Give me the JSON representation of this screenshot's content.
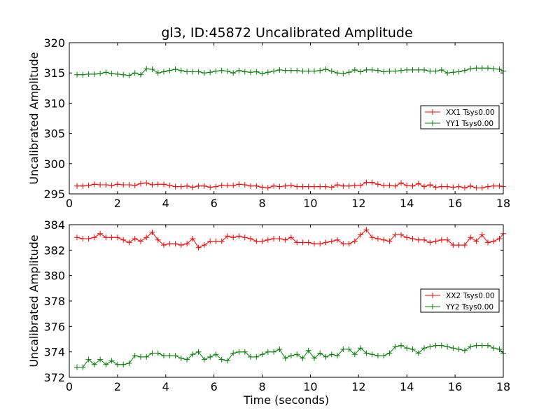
{
  "title": "gl3, ID:45872 Uncalibrated Amplitude",
  "chart_data": [
    {
      "type": "line",
      "title": "gl3, ID:45872 Uncalibrated Amplitude",
      "xlabel": "",
      "ylabel": "Uncalibrated Amplitude",
      "xlim": [
        0,
        18
      ],
      "ylim": [
        295,
        320
      ],
      "xticks": [
        "0",
        "2",
        "4",
        "6",
        "8",
        "10",
        "12",
        "14",
        "16",
        "18"
      ],
      "yticks": [
        "295",
        "300",
        "305",
        "310",
        "315",
        "320"
      ],
      "grid": false,
      "legend_position": "center-right",
      "marker": "plus",
      "series": [
        {
          "name": "XX1 Tsys0.00",
          "color": "#ff0000",
          "x": [
            0.32,
            0.56,
            0.8,
            1.04,
            1.28,
            1.52,
            1.76,
            2.0,
            2.24,
            2.48,
            2.72,
            2.96,
            3.2,
            3.44,
            3.68,
            3.92,
            4.16,
            4.4,
            4.64,
            4.88,
            5.12,
            5.36,
            5.6,
            5.84,
            6.08,
            6.32,
            6.56,
            6.8,
            7.04,
            7.28,
            7.52,
            7.76,
            8.0,
            8.24,
            8.48,
            8.72,
            8.96,
            9.2,
            9.44,
            9.68,
            9.92,
            10.16,
            10.4,
            10.64,
            10.88,
            11.12,
            11.36,
            11.6,
            11.84,
            12.08,
            12.32,
            12.56,
            12.8,
            13.04,
            13.28,
            13.52,
            13.76,
            14.0,
            14.24,
            14.48,
            14.72,
            14.96,
            15.2,
            15.44,
            15.68,
            15.92,
            16.16,
            16.4,
            16.64,
            16.88,
            17.12,
            17.36,
            17.6,
            17.84,
            18.0
          ],
          "y": [
            296.3,
            296.3,
            296.4,
            296.6,
            296.5,
            296.5,
            296.4,
            296.6,
            296.5,
            296.5,
            296.4,
            296.7,
            296.8,
            296.5,
            296.6,
            296.6,
            296.4,
            296.2,
            296.2,
            296.3,
            296.1,
            296.3,
            296.3,
            296.1,
            296.2,
            296.4,
            296.4,
            296.4,
            296.6,
            296.5,
            296.3,
            296.3,
            296.1,
            296.0,
            296.3,
            296.2,
            296.3,
            296.4,
            296.2,
            296.2,
            296.2,
            296.2,
            296.2,
            296.2,
            296.1,
            296.5,
            296.3,
            296.3,
            296.4,
            296.4,
            296.9,
            296.9,
            296.6,
            296.4,
            296.4,
            296.3,
            296.8,
            296.4,
            296.3,
            296.7,
            296.2,
            296.5,
            296.1,
            296.2,
            296.2,
            296.1,
            296.2,
            296.0,
            296.3,
            296.0,
            296.0,
            296.2,
            296.3,
            296.3,
            296.2
          ]
        },
        {
          "name": "YY1 Tsys0.00",
          "color": "#008000",
          "x": [
            0.32,
            0.56,
            0.8,
            1.04,
            1.28,
            1.52,
            1.76,
            2.0,
            2.24,
            2.48,
            2.72,
            2.96,
            3.2,
            3.44,
            3.68,
            3.92,
            4.16,
            4.4,
            4.64,
            4.88,
            5.12,
            5.36,
            5.6,
            5.84,
            6.08,
            6.32,
            6.56,
            6.8,
            7.04,
            7.28,
            7.52,
            7.76,
            8.0,
            8.24,
            8.48,
            8.72,
            8.96,
            9.2,
            9.44,
            9.68,
            9.92,
            10.16,
            10.4,
            10.64,
            10.88,
            11.12,
            11.36,
            11.6,
            11.84,
            12.08,
            12.32,
            12.56,
            12.8,
            13.04,
            13.28,
            13.52,
            13.76,
            14.0,
            14.24,
            14.48,
            14.72,
            14.96,
            15.2,
            15.44,
            15.68,
            15.92,
            16.16,
            16.4,
            16.64,
            16.88,
            17.12,
            17.36,
            17.6,
            17.84,
            18.0
          ],
          "y": [
            314.7,
            314.7,
            314.8,
            314.8,
            314.9,
            315.1,
            314.9,
            314.8,
            314.7,
            314.6,
            315.0,
            314.7,
            315.7,
            315.6,
            315.0,
            315.2,
            315.4,
            315.6,
            315.4,
            315.2,
            315.2,
            315.2,
            315.0,
            315.1,
            315.3,
            315.4,
            315.3,
            315.0,
            315.4,
            315.2,
            315.1,
            315.2,
            314.9,
            315.1,
            315.3,
            315.5,
            315.4,
            315.4,
            315.4,
            315.3,
            315.3,
            315.3,
            315.4,
            315.6,
            315.3,
            315.0,
            314.9,
            315.1,
            315.5,
            315.2,
            315.5,
            315.5,
            315.4,
            315.2,
            315.3,
            315.3,
            315.4,
            315.5,
            315.5,
            315.5,
            315.5,
            315.3,
            315.3,
            315.5,
            315.0,
            315.1,
            315.2,
            315.4,
            315.7,
            315.8,
            315.8,
            315.8,
            315.7,
            315.6,
            315.3
          ]
        }
      ]
    },
    {
      "type": "line",
      "title": "",
      "xlabel": "Time (seconds)",
      "ylabel": "Uncalibrated Amplitude",
      "xlim": [
        0,
        18
      ],
      "ylim": [
        372,
        384
      ],
      "xticks": [
        "0",
        "2",
        "4",
        "6",
        "8",
        "10",
        "12",
        "14",
        "16",
        "18"
      ],
      "yticks": [
        "372",
        "374",
        "376",
        "378",
        "380",
        "382",
        "384"
      ],
      "grid": false,
      "legend_position": "center-right",
      "marker": "plus",
      "series": [
        {
          "name": "XX2 Tsys0.00",
          "color": "#ff0000",
          "x": [
            0.32,
            0.56,
            0.8,
            1.04,
            1.28,
            1.52,
            1.76,
            2.0,
            2.24,
            2.48,
            2.72,
            2.96,
            3.2,
            3.44,
            3.68,
            3.92,
            4.16,
            4.4,
            4.64,
            4.88,
            5.12,
            5.36,
            5.6,
            5.84,
            6.08,
            6.32,
            6.56,
            6.8,
            7.04,
            7.28,
            7.52,
            7.76,
            8.0,
            8.24,
            8.48,
            8.72,
            8.96,
            9.2,
            9.44,
            9.68,
            9.92,
            10.16,
            10.4,
            10.64,
            10.88,
            11.12,
            11.36,
            11.6,
            11.84,
            12.08,
            12.32,
            12.56,
            12.8,
            13.04,
            13.28,
            13.52,
            13.76,
            14.0,
            14.24,
            14.48,
            14.72,
            14.96,
            15.2,
            15.44,
            15.68,
            15.92,
            16.16,
            16.4,
            16.64,
            16.88,
            17.12,
            17.36,
            17.6,
            17.84,
            18.0
          ],
          "y": [
            383.0,
            382.9,
            382.9,
            383.0,
            383.3,
            383.0,
            383.0,
            383.0,
            382.8,
            382.6,
            382.9,
            382.7,
            383.0,
            383.4,
            382.8,
            382.4,
            382.5,
            382.5,
            382.4,
            382.5,
            382.9,
            382.2,
            382.4,
            382.7,
            382.7,
            382.7,
            383.1,
            383.0,
            383.1,
            383.0,
            382.9,
            382.7,
            382.7,
            382.8,
            382.9,
            382.9,
            382.8,
            383.0,
            382.6,
            382.6,
            382.6,
            382.5,
            382.5,
            382.6,
            382.7,
            382.8,
            382.5,
            382.5,
            382.7,
            383.2,
            383.6,
            383.0,
            382.9,
            382.8,
            382.7,
            383.2,
            383.2,
            383.0,
            382.9,
            382.8,
            382.8,
            382.6,
            382.7,
            382.8,
            382.8,
            382.4,
            382.4,
            382.4,
            383.0,
            382.7,
            383.2,
            382.6,
            382.7,
            382.9,
            383.3
          ]
        },
        {
          "name": "YY2 Tsys0.00",
          "color": "#008000",
          "x": [
            0.32,
            0.56,
            0.8,
            1.04,
            1.28,
            1.52,
            1.76,
            2.0,
            2.24,
            2.48,
            2.72,
            2.96,
            3.2,
            3.44,
            3.68,
            3.92,
            4.16,
            4.4,
            4.64,
            4.88,
            5.12,
            5.36,
            5.6,
            5.84,
            6.08,
            6.32,
            6.56,
            6.8,
            7.04,
            7.28,
            7.52,
            7.76,
            8.0,
            8.24,
            8.48,
            8.72,
            8.96,
            9.2,
            9.44,
            9.68,
            9.92,
            10.16,
            10.4,
            10.64,
            10.88,
            11.12,
            11.36,
            11.6,
            11.84,
            12.08,
            12.32,
            12.56,
            12.8,
            13.04,
            13.28,
            13.52,
            13.76,
            14.0,
            14.24,
            14.48,
            14.72,
            14.96,
            15.2,
            15.44,
            15.68,
            15.92,
            16.16,
            16.4,
            16.64,
            16.88,
            17.12,
            17.36,
            17.6,
            17.84,
            18.0
          ],
          "y": [
            372.8,
            372.8,
            373.4,
            373.0,
            373.4,
            373.0,
            373.3,
            373.0,
            373.0,
            373.1,
            373.7,
            373.6,
            373.6,
            373.9,
            373.9,
            373.7,
            373.7,
            373.7,
            373.5,
            373.4,
            373.8,
            374.0,
            373.4,
            373.6,
            373.8,
            373.4,
            373.3,
            373.9,
            374.0,
            374.0,
            373.6,
            373.6,
            373.8,
            374.0,
            374.0,
            374.2,
            373.5,
            373.7,
            373.8,
            373.5,
            374.1,
            373.5,
            373.9,
            373.6,
            373.8,
            373.7,
            374.2,
            374.2,
            373.8,
            374.3,
            373.9,
            373.8,
            373.7,
            373.7,
            373.9,
            374.4,
            374.5,
            374.3,
            374.2,
            373.9,
            374.3,
            374.4,
            374.5,
            374.5,
            374.4,
            374.3,
            374.2,
            374.1,
            374.4,
            374.5,
            374.5,
            374.5,
            374.3,
            374.2,
            373.9
          ]
        }
      ]
    }
  ]
}
